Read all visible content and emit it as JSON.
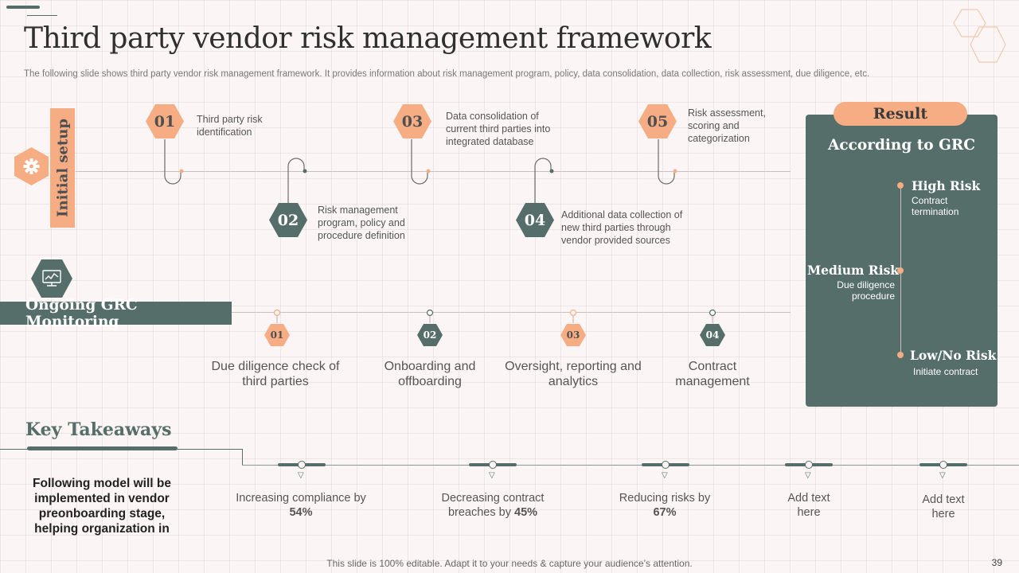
{
  "title": "Third party vendor risk management framework",
  "subtitle": "The following slide shows third party vendor risk management framework. It provides information about risk management program, policy, data consolidation, data collection, risk assessment, due diligence, etc.",
  "setup_label": "Initial setup",
  "steps": [
    {
      "num": "01",
      "text": "Third party risk identification",
      "color": "orange"
    },
    {
      "num": "02",
      "text": "Risk management program, policy and procedure definition",
      "color": "green"
    },
    {
      "num": "03",
      "text": "Data consolidation of current third parties into integrated database",
      "color": "orange"
    },
    {
      "num": "04",
      "text": "Additional data collection of new third parties through vendor provided sources",
      "color": "green"
    },
    {
      "num": "05",
      "text": "Risk assessment, scoring and categorization",
      "color": "orange"
    }
  ],
  "monitoring_label": "Ongoing GRC Monitoring",
  "monitoring_items": [
    {
      "num": "01",
      "text": "Due diligence check of third parties",
      "color": "orange"
    },
    {
      "num": "02",
      "text": "Onboarding and offboarding",
      "color": "green"
    },
    {
      "num": "03",
      "text": "Oversight, reporting and analytics",
      "color": "orange"
    },
    {
      "num": "04",
      "text": "Contract management",
      "color": "green"
    }
  ],
  "result": {
    "pill": "Result",
    "heading": "According to GRC",
    "levels": [
      {
        "name": "High Risk",
        "desc": "Contract termination"
      },
      {
        "name": "Medium Risk",
        "desc": "Due diligence procedure"
      },
      {
        "name": "Low/No Risk",
        "desc": "Initiate contract"
      }
    ]
  },
  "key_takeaways": {
    "title": "Key Takeaways",
    "summary": "Following model will be implemented in vendor preonboarding stage, helping organization in",
    "items": [
      {
        "prefix": "Increasing compliance by ",
        "value": "54%"
      },
      {
        "prefix": "Decreasing contract breaches by ",
        "value": "45%"
      },
      {
        "prefix": "Reducing risks by ",
        "value": "67%"
      },
      {
        "prefix": "Add text here",
        "value": ""
      },
      {
        "prefix": "Add text here",
        "value": ""
      }
    ]
  },
  "footer": "This slide is 100% editable. Adapt it to your needs & capture your audience’s attention.",
  "page_number": "39",
  "colors": {
    "accent": "#f6ad84",
    "primary": "#566e69",
    "background": "#fbf6f5"
  },
  "icons": {
    "setup": "gear-icon",
    "monitoring": "monitor-chart-icon"
  }
}
